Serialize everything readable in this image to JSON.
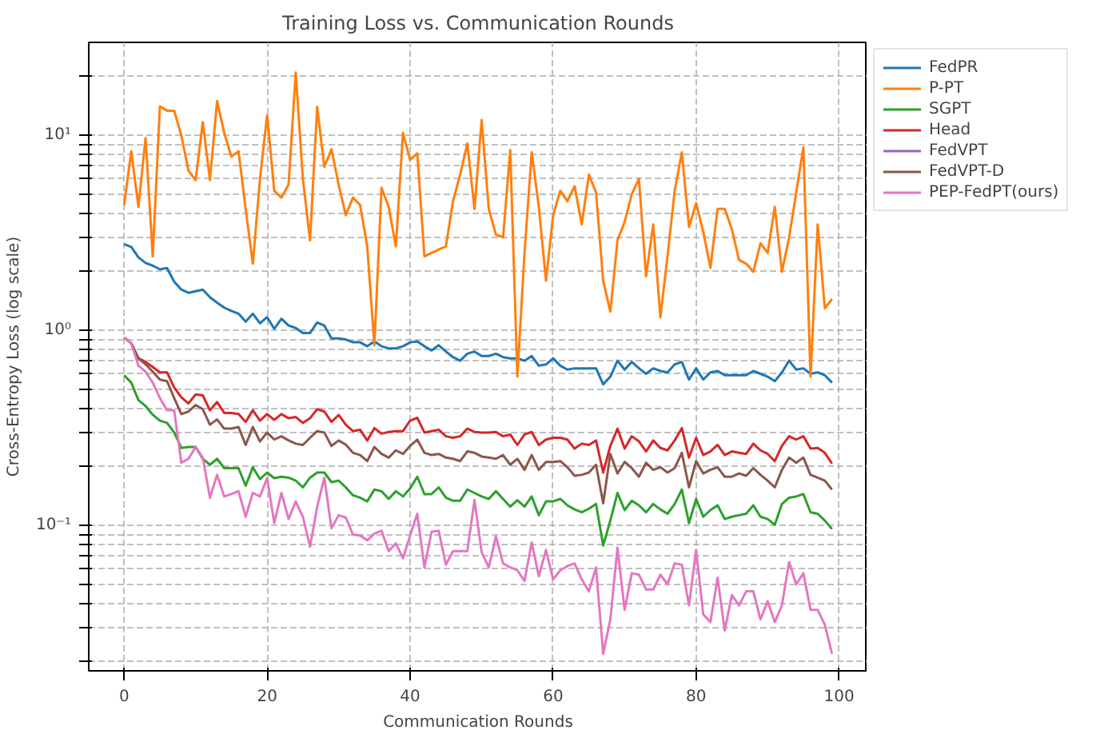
{
  "chart_data": {
    "type": "line",
    "title": "Training Loss vs. Communication Rounds",
    "xlabel": "Communication Rounds",
    "ylabel": "Cross-Entropy Loss (log scale)",
    "log": "y",
    "grid": true,
    "legend": "right",
    "line_style": "solid",
    "marker": "none",
    "x": [
      0,
      1,
      2,
      3,
      4,
      5,
      6,
      7,
      8,
      9,
      10,
      11,
      12,
      13,
      14,
      15,
      16,
      17,
      18,
      19,
      20,
      21,
      22,
      23,
      24,
      25,
      26,
      27,
      28,
      29,
      30,
      31,
      32,
      33,
      34,
      35,
      36,
      37,
      38,
      39,
      40,
      41,
      42,
      43,
      44,
      45,
      46,
      47,
      48,
      49,
      50,
      51,
      52,
      53,
      54,
      55,
      56,
      57,
      58,
      59,
      60,
      61,
      62,
      63,
      64,
      65,
      66,
      67,
      68,
      69,
      70,
      71,
      72,
      73,
      74,
      75,
      76,
      77,
      78,
      79,
      80,
      81,
      82,
      83,
      84,
      85,
      86,
      87,
      88,
      89,
      90,
      91,
      92,
      93,
      94,
      95,
      96,
      97,
      98,
      99
    ],
    "xlim": [
      -4.95,
      103.95
    ],
    "xticks": [
      0,
      20,
      40,
      60,
      80,
      100
    ],
    "ylim": [
      0.018,
      30
    ],
    "yticks": [
      {
        "value": 0.02,
        "label": null
      },
      {
        "value": 0.03,
        "label": null
      },
      {
        "value": 0.04,
        "label": null
      },
      {
        "value": 0.05,
        "label": null
      },
      {
        "value": 0.06,
        "label": null
      },
      {
        "value": 0.07,
        "label": null
      },
      {
        "value": 0.08,
        "label": null
      },
      {
        "value": 0.09,
        "label": null
      },
      {
        "value": 0.1,
        "label": "10⁻¹"
      },
      {
        "value": 0.2,
        "label": null
      },
      {
        "value": 0.3,
        "label": null
      },
      {
        "value": 0.4,
        "label": null
      },
      {
        "value": 0.5,
        "label": null
      },
      {
        "value": 0.6,
        "label": null
      },
      {
        "value": 0.7,
        "label": null
      },
      {
        "value": 0.8,
        "label": null
      },
      {
        "value": 0.9,
        "label": null
      },
      {
        "value": 1,
        "label": "10⁰"
      },
      {
        "value": 2,
        "label": null
      },
      {
        "value": 3,
        "label": null
      },
      {
        "value": 4,
        "label": null
      },
      {
        "value": 5,
        "label": null
      },
      {
        "value": 6,
        "label": null
      },
      {
        "value": 7,
        "label": null
      },
      {
        "value": 8,
        "label": null
      },
      {
        "value": 9,
        "label": null
      },
      {
        "value": 10,
        "label": "10¹"
      },
      {
        "value": 20,
        "label": null
      }
    ],
    "series": [
      {
        "name": "FedPR",
        "color": "#1f77b4",
        "values": [
          2.77,
          2.68,
          2.37,
          2.22,
          2.15,
          2.06,
          2.09,
          1.78,
          1.62,
          1.56,
          1.59,
          1.62,
          1.48,
          1.39,
          1.31,
          1.26,
          1.22,
          1.11,
          1.22,
          1.09,
          1.17,
          1.02,
          1.15,
          1.06,
          1.03,
          0.97,
          0.97,
          1.1,
          1.06,
          0.91,
          0.91,
          0.9,
          0.87,
          0.87,
          0.83,
          0.88,
          0.83,
          0.81,
          0.81,
          0.83,
          0.87,
          0.88,
          0.83,
          0.79,
          0.84,
          0.78,
          0.73,
          0.7,
          0.76,
          0.78,
          0.74,
          0.74,
          0.76,
          0.73,
          0.72,
          0.72,
          0.7,
          0.74,
          0.66,
          0.67,
          0.72,
          0.66,
          0.63,
          0.64,
          0.64,
          0.64,
          0.64,
          0.53,
          0.58,
          0.7,
          0.63,
          0.69,
          0.64,
          0.6,
          0.64,
          0.62,
          0.61,
          0.67,
          0.69,
          0.56,
          0.64,
          0.56,
          0.61,
          0.62,
          0.59,
          0.59,
          0.59,
          0.59,
          0.62,
          0.6,
          0.58,
          0.55,
          0.61,
          0.7,
          0.63,
          0.64,
          0.6,
          0.61,
          0.59,
          0.54
        ]
      },
      {
        "name": "P-PT",
        "color": "#ff7f0e",
        "values": [
          4.4,
          8.3,
          4.3,
          9.7,
          2.4,
          14.1,
          13.4,
          13.4,
          10,
          6.6,
          5.9,
          11.7,
          5.9,
          15,
          10.3,
          7.8,
          8.3,
          4.2,
          2.2,
          6,
          12.7,
          5.2,
          4.8,
          5.6,
          21,
          6,
          2.9,
          14,
          6.9,
          8.5,
          5.6,
          3.9,
          4.8,
          4.4,
          2.7,
          0.84,
          5.4,
          4.3,
          2.7,
          10.3,
          7.5,
          8.1,
          2.4,
          2.5,
          2.6,
          2.7,
          4.6,
          6.3,
          9.1,
          4.2,
          12,
          4.2,
          3.1,
          3,
          8.4,
          0.58,
          2.5,
          8.2,
          4.3,
          1.8,
          3.9,
          5.2,
          4.6,
          5.5,
          3.5,
          6.3,
          5.1,
          1.8,
          1.25,
          2.9,
          3.6,
          5,
          6,
          1.9,
          3.5,
          1.17,
          2.4,
          5.2,
          8.2,
          3.4,
          4.5,
          3.2,
          2.1,
          4.2,
          4.2,
          3.3,
          2.3,
          2.2,
          2,
          2.8,
          2.5,
          4.3,
          2,
          3,
          5.1,
          8.7,
          0.58,
          3.5,
          1.3,
          1.45
        ]
      },
      {
        "name": "SGPT",
        "color": "#2ca02c",
        "values": [
          0.59,
          0.54,
          0.44,
          0.41,
          0.37,
          0.345,
          0.336,
          0.3,
          0.25,
          0.253,
          0.253,
          0.22,
          0.205,
          0.22,
          0.197,
          0.197,
          0.197,
          0.16,
          0.199,
          0.173,
          0.187,
          0.175,
          0.178,
          0.176,
          0.17,
          0.157,
          0.176,
          0.187,
          0.187,
          0.167,
          0.17,
          0.157,
          0.143,
          0.139,
          0.133,
          0.153,
          0.15,
          0.137,
          0.15,
          0.141,
          0.155,
          0.178,
          0.145,
          0.145,
          0.157,
          0.139,
          0.134,
          0.134,
          0.153,
          0.147,
          0.141,
          0.137,
          0.15,
          0.137,
          0.125,
          0.135,
          0.125,
          0.141,
          0.113,
          0.133,
          0.133,
          0.137,
          0.127,
          0.121,
          0.117,
          0.122,
          0.129,
          0.079,
          0.106,
          0.147,
          0.12,
          0.134,
          0.127,
          0.117,
          0.129,
          0.121,
          0.115,
          0.129,
          0.153,
          0.103,
          0.137,
          0.111,
          0.12,
          0.127,
          0.108,
          0.111,
          0.113,
          0.115,
          0.127,
          0.111,
          0.108,
          0.101,
          0.129,
          0.139,
          0.141,
          0.145,
          0.117,
          0.115,
          0.106,
          0.096
        ]
      },
      {
        "name": "Head",
        "color": "#d62728",
        "values": [
          0.92,
          0.86,
          0.72,
          0.69,
          0.65,
          0.61,
          0.61,
          0.51,
          0.455,
          0.423,
          0.47,
          0.465,
          0.39,
          0.43,
          0.378,
          0.378,
          0.373,
          0.34,
          0.39,
          0.345,
          0.373,
          0.348,
          0.373,
          0.355,
          0.36,
          0.336,
          0.355,
          0.395,
          0.384,
          0.34,
          0.369,
          0.329,
          0.305,
          0.31,
          0.273,
          0.316,
          0.296,
          0.302,
          0.305,
          0.305,
          0.345,
          0.357,
          0.3,
          0.305,
          0.31,
          0.287,
          0.282,
          0.287,
          0.314,
          0.302,
          0.3,
          0.3,
          0.302,
          0.287,
          0.293,
          0.259,
          0.293,
          0.302,
          0.259,
          0.276,
          0.282,
          0.282,
          0.276,
          0.248,
          0.263,
          0.259,
          0.273,
          0.187,
          0.256,
          0.314,
          0.248,
          0.287,
          0.27,
          0.24,
          0.273,
          0.25,
          0.243,
          0.273,
          0.316,
          0.223,
          0.282,
          0.23,
          0.24,
          0.259,
          0.23,
          0.24,
          0.236,
          0.233,
          0.263,
          0.243,
          0.233,
          0.214,
          0.256,
          0.287,
          0.276,
          0.287,
          0.248,
          0.25,
          0.236,
          0.208
        ]
      },
      {
        "name": "FedVPT",
        "color": "#9467bd",
        "values": [
          null,
          null,
          null,
          null,
          null,
          null,
          null,
          null,
          null,
          null,
          null,
          null,
          null,
          null,
          null,
          null,
          null,
          null,
          null,
          null,
          null,
          null,
          null,
          null,
          null,
          null,
          null,
          null,
          null,
          null,
          null,
          null,
          null,
          null,
          null,
          null,
          null,
          null,
          null,
          null,
          null,
          null,
          null,
          null,
          null,
          null,
          null,
          null,
          null,
          null,
          null,
          null,
          null,
          null,
          null,
          null,
          null,
          null,
          null,
          null,
          null,
          null,
          null,
          null,
          null,
          null,
          null,
          null,
          null,
          null,
          null,
          null,
          null,
          null,
          null,
          null,
          null,
          null,
          null,
          null,
          null,
          null,
          null,
          null,
          null,
          null,
          null,
          null,
          null,
          null,
          null,
          null,
          null,
          null,
          null,
          null,
          null,
          null,
          null,
          null
        ]
      },
      {
        "name": "FedVPT-D",
        "color": "#8c564b",
        "values": [
          0.92,
          0.86,
          0.72,
          0.67,
          0.615,
          0.56,
          0.55,
          0.45,
          0.373,
          0.384,
          0.415,
          0.395,
          0.329,
          0.35,
          0.314,
          0.314,
          0.32,
          0.259,
          0.32,
          0.27,
          0.3,
          0.276,
          0.287,
          0.273,
          0.263,
          0.259,
          0.282,
          0.305,
          0.3,
          0.256,
          0.273,
          0.26,
          0.236,
          0.23,
          0.214,
          0.253,
          0.233,
          0.223,
          0.243,
          0.233,
          0.256,
          0.276,
          0.236,
          0.23,
          0.233,
          0.223,
          0.22,
          0.214,
          0.24,
          0.236,
          0.226,
          0.223,
          0.22,
          0.23,
          0.205,
          0.22,
          0.193,
          0.23,
          0.193,
          0.212,
          0.212,
          0.214,
          0.199,
          0.18,
          0.182,
          0.187,
          0.205,
          0.13,
          0.233,
          0.185,
          0.212,
          0.197,
          0.178,
          0.21,
          0.193,
          0.199,
          0.187,
          0.197,
          0.236,
          0.157,
          0.214,
          0.185,
          0.193,
          0.199,
          0.178,
          0.178,
          0.185,
          0.18,
          0.197,
          0.182,
          0.17,
          0.157,
          0.193,
          0.223,
          0.21,
          0.223,
          0.182,
          0.176,
          0.17,
          0.153
        ]
      },
      {
        "name": "PEP-FedPT(ours)",
        "color": "#e377c2",
        "values": [
          0.92,
          0.86,
          0.66,
          0.615,
          0.54,
          0.45,
          0.39,
          0.39,
          0.21,
          0.22,
          0.253,
          0.223,
          0.139,
          0.182,
          0.141,
          0.145,
          0.15,
          0.111,
          0.147,
          0.141,
          0.175,
          0.103,
          0.147,
          0.108,
          0.133,
          0.111,
          0.078,
          0.125,
          0.176,
          0.097,
          0.113,
          0.11,
          0.09,
          0.089,
          0.084,
          0.091,
          0.094,
          0.074,
          0.081,
          0.068,
          0.089,
          0.115,
          0.061,
          0.093,
          0.094,
          0.063,
          0.074,
          0.074,
          0.074,
          0.135,
          0.073,
          0.061,
          0.088,
          0.064,
          0.061,
          0.059,
          0.052,
          0.082,
          0.055,
          0.075,
          0.053,
          0.059,
          0.062,
          0.064,
          0.053,
          0.046,
          0.061,
          0.022,
          0.033,
          0.077,
          0.037,
          0.057,
          0.056,
          0.047,
          0.047,
          0.056,
          0.05,
          0.064,
          0.063,
          0.039,
          0.075,
          0.035,
          0.032,
          0.054,
          0.029,
          0.044,
          0.039,
          0.046,
          0.046,
          0.033,
          0.041,
          0.032,
          0.039,
          0.065,
          0.05,
          0.057,
          0.037,
          0.037,
          0.031,
          0.022
        ]
      }
    ]
  }
}
